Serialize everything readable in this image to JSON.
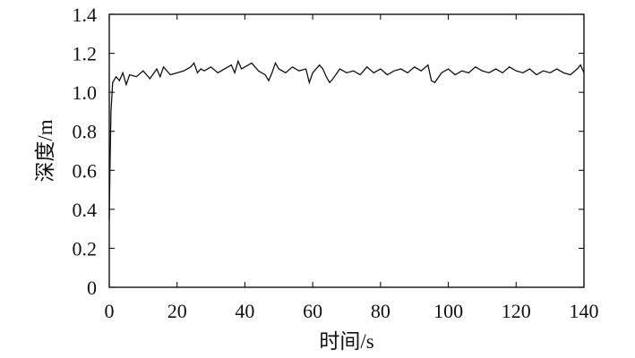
{
  "chart_data": {
    "type": "line",
    "xlabel": "时间/s",
    "ylabel": "深度/m",
    "xlim": [
      0,
      140
    ],
    "ylim": [
      0,
      1.4
    ],
    "xticks": [
      0,
      20,
      40,
      60,
      80,
      100,
      120,
      140
    ],
    "yticks": [
      0,
      0.2,
      0.4,
      0.6,
      0.8,
      1.0,
      1.2,
      1.4
    ],
    "xtick_labels": [
      "0",
      "20",
      "40",
      "60",
      "80",
      "100",
      "120",
      "140"
    ],
    "ytick_labels": [
      "0",
      "0.2",
      "0.4",
      "0.6",
      "0.8",
      "1.0",
      "1.2",
      "1.4"
    ],
    "grid": false,
    "line_color": "#111111",
    "series": [
      {
        "x": [
          0,
          0.2,
          0.5,
          1,
          2,
          3,
          4,
          5,
          6,
          8,
          10,
          12,
          14,
          15,
          16,
          18,
          20,
          22,
          24,
          25,
          26,
          27,
          28,
          30,
          32,
          34,
          36,
          37,
          38,
          39,
          40,
          42,
          44,
          46,
          47,
          48,
          49,
          50,
          52,
          54,
          56,
          58,
          59,
          60,
          62,
          63,
          64,
          65,
          66,
          68,
          70,
          72,
          74,
          76,
          78,
          80,
          82,
          84,
          86,
          88,
          90,
          92,
          94,
          95,
          96,
          98,
          100,
          102,
          104,
          106,
          108,
          110,
          112,
          114,
          116,
          118,
          120,
          122,
          124,
          126,
          128,
          130,
          132,
          134,
          136,
          138,
          139,
          140
        ],
        "y": [
          0.35,
          0.6,
          0.9,
          1.05,
          1.08,
          1.06,
          1.1,
          1.04,
          1.09,
          1.08,
          1.11,
          1.07,
          1.12,
          1.08,
          1.13,
          1.09,
          1.1,
          1.11,
          1.13,
          1.15,
          1.1,
          1.12,
          1.11,
          1.13,
          1.1,
          1.12,
          1.14,
          1.1,
          1.16,
          1.12,
          1.13,
          1.15,
          1.11,
          1.09,
          1.06,
          1.1,
          1.15,
          1.12,
          1.1,
          1.13,
          1.11,
          1.12,
          1.05,
          1.1,
          1.14,
          1.12,
          1.08,
          1.05,
          1.07,
          1.12,
          1.1,
          1.11,
          1.09,
          1.13,
          1.1,
          1.12,
          1.09,
          1.11,
          1.12,
          1.1,
          1.13,
          1.11,
          1.14,
          1.06,
          1.05,
          1.1,
          1.12,
          1.09,
          1.11,
          1.1,
          1.13,
          1.11,
          1.1,
          1.12,
          1.1,
          1.13,
          1.11,
          1.1,
          1.12,
          1.09,
          1.11,
          1.1,
          1.12,
          1.1,
          1.09,
          1.12,
          1.14,
          1.1
        ]
      }
    ]
  }
}
